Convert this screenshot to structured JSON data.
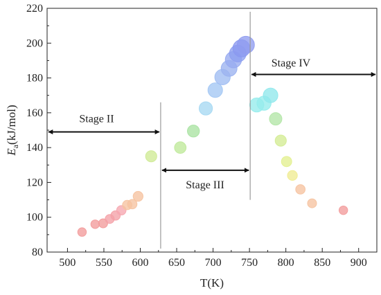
{
  "chart_data": {
    "type": "scatter",
    "title": "",
    "xlabel": "T(K)",
    "ylabel": {
      "main": "E",
      "sub": "a",
      "rest": "(kJ/mol)"
    },
    "xlim": [
      472,
      925
    ],
    "ylim": [
      80,
      220
    ],
    "xticks": [
      500,
      550,
      600,
      650,
      700,
      750,
      800,
      850,
      900
    ],
    "yticks": [
      80,
      100,
      120,
      140,
      160,
      180,
      200,
      220
    ],
    "grid": false,
    "points": [
      {
        "x": 520,
        "y": 91.5,
        "color": "#f29b9b",
        "size": 1
      },
      {
        "x": 538,
        "y": 96,
        "color": "#f29b9b",
        "size": 1
      },
      {
        "x": 549,
        "y": 96.5,
        "color": "#f29b9b",
        "size": 1.05
      },
      {
        "x": 558,
        "y": 99,
        "color": "#f4a0a6",
        "size": 1.05
      },
      {
        "x": 566,
        "y": 101,
        "color": "#f4a0a6",
        "size": 1.1
      },
      {
        "x": 574,
        "y": 104,
        "color": "#f6a6b0",
        "size": 1.1
      },
      {
        "x": 582,
        "y": 107,
        "color": "#f6c3a0",
        "size": 1.1
      },
      {
        "x": 589,
        "y": 107.5,
        "color": "#f6c3a0",
        "size": 1.1
      },
      {
        "x": 597,
        "y": 112,
        "color": "#f6c3a0",
        "size": 1.15
      },
      {
        "x": 615,
        "y": 135,
        "color": "#cfea95",
        "size": 1.3
      },
      {
        "x": 655,
        "y": 140,
        "color": "#bfe99a",
        "size": 1.35
      },
      {
        "x": 673,
        "y": 149.5,
        "color": "#a9e3a2",
        "size": 1.4
      },
      {
        "x": 690,
        "y": 162.5,
        "color": "#a7d8f2",
        "size": 1.55
      },
      {
        "x": 703,
        "y": 173,
        "color": "#a3c7f3",
        "size": 1.7
      },
      {
        "x": 713,
        "y": 180.5,
        "color": "#9fbdf2",
        "size": 1.8
      },
      {
        "x": 722,
        "y": 185.5,
        "color": "#9bb2f0",
        "size": 1.85
      },
      {
        "x": 728,
        "y": 190.5,
        "color": "#97aaf0",
        "size": 1.9
      },
      {
        "x": 734,
        "y": 194,
        "color": "#8d9ff0",
        "size": 1.95
      },
      {
        "x": 739,
        "y": 197,
        "color": "#8a99ef",
        "size": 2.0
      },
      {
        "x": 745,
        "y": 199,
        "color": "#8f9cf0",
        "size": 2.0
      },
      {
        "x": 760,
        "y": 164.5,
        "color": "#95ecec",
        "size": 1.65
      },
      {
        "x": 770,
        "y": 165.5,
        "color": "#95ecec",
        "size": 1.65
      },
      {
        "x": 779,
        "y": 170,
        "color": "#8fe8ec",
        "size": 1.7
      },
      {
        "x": 786,
        "y": 156.5,
        "color": "#b2e6a6",
        "size": 1.45
      },
      {
        "x": 793,
        "y": 144,
        "color": "#d3ec93",
        "size": 1.3
      },
      {
        "x": 801,
        "y": 132,
        "color": "#e3f08f",
        "size": 1.2
      },
      {
        "x": 809,
        "y": 124,
        "color": "#f0ec92",
        "size": 1.15
      },
      {
        "x": 820,
        "y": 116,
        "color": "#f6c3a0",
        "size": 1.1
      },
      {
        "x": 836,
        "y": 108,
        "color": "#f6c3a0",
        "size": 1.05
      },
      {
        "x": 879,
        "y": 104,
        "color": "#f29b9b",
        "size": 1
      }
    ],
    "dividers": [
      {
        "x": 628,
        "y0": 82,
        "y1": 166
      },
      {
        "x": 751,
        "y0": 110,
        "y1": 218
      }
    ],
    "stages": [
      {
        "label": "Stage II",
        "x0": 472,
        "x1": 628,
        "arrow_y": 149,
        "label_x": 540,
        "label_y": 156
      },
      {
        "label": "Stage III",
        "x0": 628,
        "x1": 751,
        "arrow_y": 127,
        "label_x": 689,
        "label_y": 118
      },
      {
        "label": "Stage IV",
        "x0": 751,
        "x1": 925,
        "arrow_y": 182,
        "label_x": 807,
        "label_y": 188
      }
    ]
  }
}
